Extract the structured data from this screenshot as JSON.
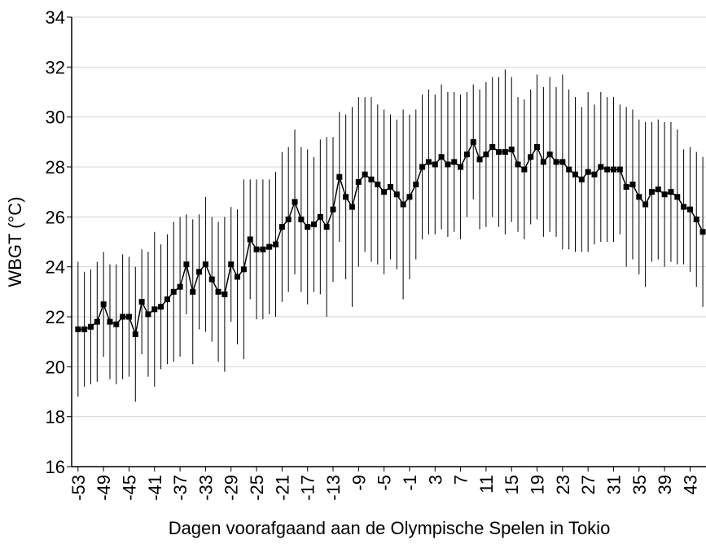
{
  "chart_data": {
    "type": "errorbar-line",
    "xlabel": "Dagen voorafgaand aan de Olympische Spelen in Tokio",
    "ylabel": "WBGT (°C)",
    "xlim": [
      -54,
      45.5
    ],
    "ylim": [
      16,
      34
    ],
    "xticks": [
      -53,
      -49,
      -45,
      -41,
      -37,
      -33,
      -29,
      -25,
      -21,
      -17,
      -13,
      -9,
      -5,
      -1,
      3,
      7,
      11,
      15,
      19,
      23,
      27,
      31,
      35,
      39,
      43
    ],
    "yticks": [
      16,
      18,
      20,
      22,
      24,
      26,
      28,
      30,
      32,
      34
    ],
    "grid": true,
    "color": "#000000",
    "x": [
      -53,
      -52,
      -51,
      -50,
      -49,
      -48,
      -47,
      -46,
      -45,
      -44,
      -43,
      -42,
      -41,
      -40,
      -39,
      -38,
      -37,
      -36,
      -35,
      -34,
      -33,
      -32,
      -31,
      -30,
      -29,
      -28,
      -27,
      -26,
      -25,
      -24,
      -23,
      -22,
      -21,
      -20,
      -19,
      -18,
      -17,
      -16,
      -15,
      -14,
      -13,
      -12,
      -11,
      -10,
      -9,
      -8,
      -7,
      -6,
      -5,
      -4,
      -3,
      -2,
      -1,
      0,
      1,
      2,
      3,
      4,
      5,
      6,
      7,
      8,
      9,
      10,
      11,
      12,
      13,
      14,
      15,
      16,
      17,
      18,
      19,
      20,
      21,
      22,
      23,
      24,
      25,
      26,
      27,
      28,
      29,
      30,
      31,
      32,
      33,
      34,
      35,
      36,
      37,
      38,
      39,
      40,
      41,
      42,
      43,
      44,
      45
    ],
    "values": [
      21.5,
      21.5,
      21.6,
      21.8,
      22.5,
      21.8,
      21.7,
      22.0,
      22.0,
      21.3,
      22.6,
      22.1,
      22.3,
      22.4,
      22.7,
      23.0,
      23.2,
      24.1,
      23.0,
      23.8,
      24.1,
      23.5,
      23.0,
      22.9,
      24.1,
      23.6,
      23.9,
      25.1,
      24.7,
      24.7,
      24.8,
      24.9,
      25.6,
      25.9,
      26.6,
      25.9,
      25.6,
      25.7,
      26.0,
      25.6,
      26.3,
      27.6,
      26.8,
      26.4,
      27.4,
      27.7,
      27.5,
      27.3,
      27.0,
      27.2,
      26.9,
      26.5,
      26.8,
      27.3,
      28.0,
      28.2,
      28.1,
      28.4,
      28.1,
      28.2,
      28.0,
      28.5,
      29.0,
      28.3,
      28.5,
      28.8,
      28.6,
      28.6,
      28.7,
      28.1,
      27.9,
      28.4,
      28.8,
      28.2,
      28.5,
      28.2,
      28.2,
      27.9,
      27.7,
      27.5,
      27.8,
      27.7,
      28.0,
      27.9,
      27.9,
      27.9,
      27.2,
      27.3,
      26.8,
      26.5,
      27.0,
      27.1,
      26.9,
      27.0,
      26.8,
      26.4,
      26.3,
      25.9,
      25.4
    ],
    "errors": [
      2.7,
      2.3,
      2.3,
      2.4,
      2.1,
      2.3,
      2.4,
      2.5,
      2.4,
      2.7,
      2.1,
      2.5,
      3.1,
      2.5,
      2.6,
      2.8,
      2.8,
      2.0,
      2.9,
      2.3,
      2.7,
      2.5,
      2.8,
      3.1,
      2.3,
      2.7,
      3.6,
      2.4,
      2.8,
      2.8,
      2.7,
      2.9,
      3.0,
      2.9,
      2.9,
      2.9,
      3.1,
      2.7,
      3.1,
      3.6,
      2.9,
      2.6,
      3.3,
      4.0,
      3.4,
      3.1,
      3.3,
      3.2,
      3.3,
      2.9,
      3.0,
      3.8,
      3.3,
      3.0,
      2.9,
      2.9,
      2.8,
      2.9,
      2.9,
      2.8,
      2.9,
      2.5,
      2.3,
      2.8,
      2.9,
      2.8,
      3.0,
      3.3,
      2.9,
      2.7,
      2.8,
      2.7,
      2.9,
      3.0,
      3.1,
      3.0,
      3.5,
      3.2,
      3.1,
      2.9,
      3.2,
      2.8,
      3.0,
      2.9,
      2.9,
      2.6,
      3.2,
      3.0,
      3.1,
      3.3,
      2.8,
      2.8,
      2.9,
      2.8,
      2.7,
      2.3,
      2.5,
      2.7,
      3.0
    ]
  }
}
